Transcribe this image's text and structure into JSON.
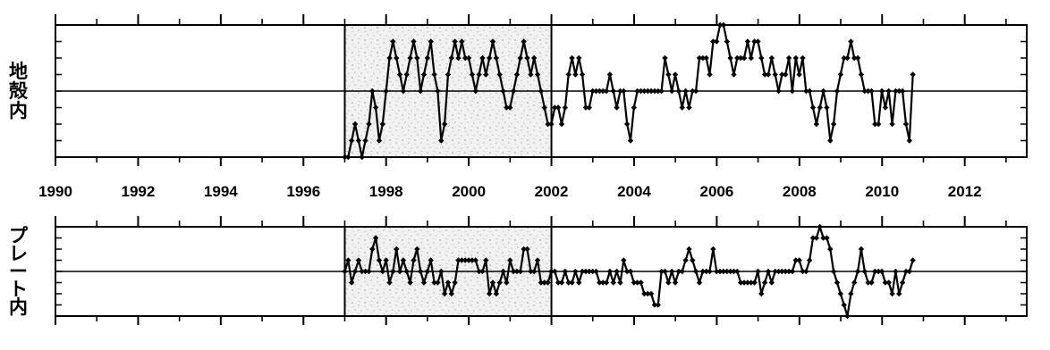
{
  "chart_data": [
    {
      "type": "line",
      "ylabel": "地殻内",
      "xlim": [
        1990,
        2013.5
      ],
      "ylim": [
        0,
        8
      ],
      "baseline": 4,
      "x_ticks": [
        1990,
        1992,
        1994,
        1996,
        1998,
        2000,
        2002,
        2004,
        2006,
        2008,
        2010,
        2012
      ],
      "x_tick_labels": [
        "1990",
        "1992",
        "1994",
        "1996",
        "1998",
        "2000",
        "2002",
        "2004",
        "2006",
        "2008",
        "2010",
        "2012"
      ],
      "highlight_range": [
        1997.0,
        2002.0
      ],
      "start": 1997.0,
      "step": 0.0833,
      "series": [
        {
          "values": [
            0,
            0,
            1,
            2,
            1,
            0,
            1,
            2,
            4,
            3,
            1,
            2,
            4,
            6,
            7,
            6,
            5,
            4,
            5,
            6,
            7,
            6,
            4,
            5,
            6,
            7,
            5,
            4,
            1,
            2,
            5,
            6,
            7,
            6,
            7,
            6,
            6,
            5,
            4,
            5,
            6,
            5,
            6,
            7,
            6,
            5,
            4,
            3,
            3,
            4,
            5,
            6,
            7,
            6,
            5,
            6,
            5,
            4,
            3,
            2,
            2,
            3,
            3,
            2,
            3,
            5,
            6,
            5,
            6,
            5,
            3,
            3,
            4,
            4,
            4,
            4,
            4,
            5,
            4,
            3,
            4,
            4,
            2,
            1,
            3,
            4,
            4,
            4,
            4,
            4,
            4,
            4,
            4,
            6,
            5,
            4,
            5,
            4,
            3,
            4,
            3,
            4,
            4,
            6,
            6,
            6,
            5,
            7,
            7,
            8,
            8,
            7,
            6,
            5,
            6,
            6,
            6,
            7,
            6,
            7,
            7,
            6,
            5,
            5,
            6,
            5,
            4,
            5,
            5,
            6,
            4,
            6,
            5,
            6,
            4,
            4,
            3,
            2,
            3,
            4,
            3,
            1,
            2,
            4,
            5,
            6,
            6,
            7,
            6,
            6,
            5,
            4,
            4,
            4,
            2,
            2,
            4,
            3,
            4,
            2,
            4,
            4,
            4,
            2,
            1,
            5
          ]
        }
      ]
    },
    {
      "type": "line",
      "ylabel": "プレート内",
      "xlim": [
        1990,
        2013.5
      ],
      "ylim": [
        0,
        8
      ],
      "baseline": 4,
      "x_ticks": [
        1990,
        1992,
        1994,
        1996,
        1998,
        2000,
        2002,
        2004,
        2006,
        2008,
        2010,
        2012
      ],
      "highlight_range": [
        1997.0,
        2002.0
      ],
      "start": 1997.0,
      "step": 0.0833,
      "series": [
        {
          "values": [
            4,
            5,
            3,
            4,
            5,
            4,
            4,
            4,
            6,
            7,
            5,
            4,
            5,
            3,
            4,
            6,
            4,
            5,
            4,
            3,
            5,
            6,
            4,
            3,
            4,
            5,
            3,
            3,
            4,
            2,
            3,
            2,
            3,
            5,
            5,
            5,
            5,
            5,
            5,
            4,
            4,
            5,
            2,
            3,
            2,
            3,
            4,
            3,
            5,
            4,
            4,
            4,
            6,
            6,
            4,
            4,
            5,
            3,
            3,
            3,
            4,
            4,
            3,
            3,
            4,
            3,
            3,
            4,
            3,
            4,
            4,
            4,
            4,
            4,
            3,
            3,
            3,
            4,
            3,
            4,
            3,
            5,
            4,
            4,
            3,
            3,
            3,
            2,
            2,
            2,
            1,
            1,
            4,
            4,
            3,
            4,
            3,
            4,
            4,
            5,
            6,
            5,
            4,
            3,
            4,
            4,
            4,
            6,
            4,
            4,
            4,
            4,
            4,
            4,
            4,
            3,
            3,
            3,
            3,
            3,
            4,
            2,
            3,
            4,
            3,
            4,
            4,
            4,
            4,
            4,
            4,
            5,
            5,
            4,
            4,
            5,
            7,
            7,
            8,
            7,
            7,
            6,
            4,
            3,
            2,
            1,
            0,
            2,
            3,
            4,
            6,
            4,
            3,
            3,
            4,
            4,
            4,
            3,
            3,
            2,
            4,
            2,
            3,
            4,
            4,
            5
          ]
        }
      ]
    }
  ]
}
